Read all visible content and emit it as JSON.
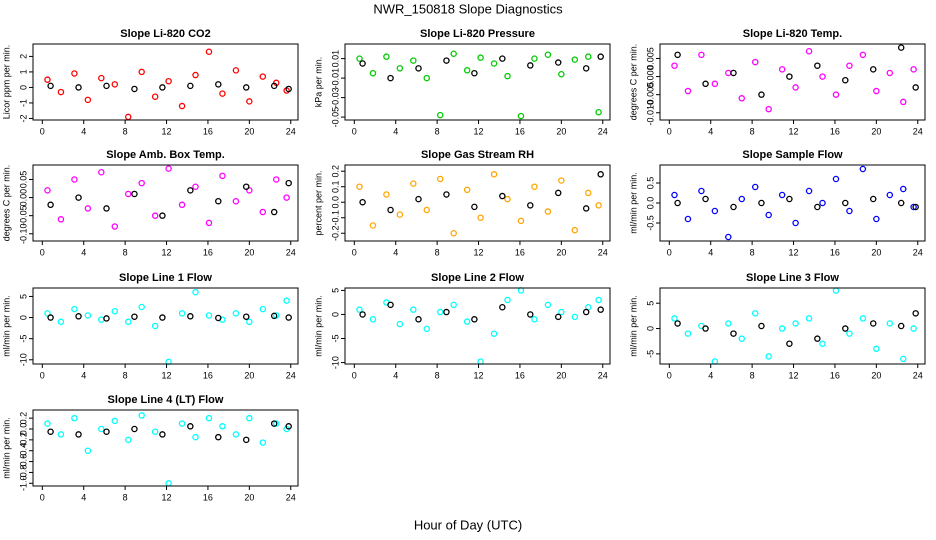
{
  "title": "NWR_150818  Slope Diagnostics",
  "x_label": "Hour of Day (UTC)",
  "chart_data": [
    {
      "type": "scatter",
      "title": "Slope Li-820 CO2",
      "y_label": "Licor ppm per min.",
      "xlim": [
        -0.9,
        24.7
      ],
      "xticks": [
        0,
        4,
        8,
        12,
        16,
        20,
        24
      ],
      "ylim": [
        -2.1,
        2.8
      ],
      "yticks": [
        -2,
        -1,
        0,
        1,
        2
      ],
      "series": [
        {
          "color": "#ff0000",
          "x": [
            0.5,
            1.8,
            3.1,
            4.4,
            5.7,
            7.0,
            8.3,
            9.6,
            10.9,
            12.2,
            13.5,
            14.8,
            16.1,
            17.4,
            18.7,
            20.0,
            21.3,
            22.6,
            23.6
          ],
          "values": [
            0.5,
            -0.3,
            0.9,
            -0.8,
            0.6,
            0.2,
            -1.9,
            1.0,
            -0.6,
            0.4,
            -1.2,
            0.8,
            2.3,
            -0.4,
            1.1,
            -0.9,
            0.7,
            0.3,
            -0.2
          ]
        },
        {
          "color": "#000000",
          "x": [
            0.8,
            3.5,
            6.2,
            8.9,
            11.6,
            14.3,
            17.0,
            19.7,
            22.4,
            23.8
          ],
          "values": [
            0.1,
            0.0,
            0.1,
            -0.1,
            0.0,
            0.1,
            0.2,
            0.0,
            0.1,
            -0.1
          ]
        }
      ]
    },
    {
      "type": "scatter",
      "title": "Slope Li-820 Pressure",
      "y_label": "kPa per min.",
      "xlim": [
        -0.9,
        24.7
      ],
      "xticks": [
        0,
        4,
        8,
        12,
        16,
        20,
        24
      ],
      "ylim": [
        -0.053,
        0.025
      ],
      "yticks": [
        -0.05,
        -0.03,
        -0.01,
        0.01
      ],
      "series": [
        {
          "color": "#00cc00",
          "x": [
            0.5,
            1.8,
            3.1,
            4.4,
            5.7,
            7.0,
            8.3,
            9.6,
            10.9,
            12.2,
            13.5,
            14.8,
            16.1,
            17.4,
            18.7,
            20.0,
            21.3,
            22.6,
            23.6
          ],
          "values": [
            0.01,
            -0.005,
            0.012,
            0.0,
            0.008,
            -0.01,
            -0.048,
            0.015,
            -0.002,
            0.011,
            0.005,
            -0.008,
            -0.049,
            0.01,
            0.014,
            -0.006,
            0.009,
            0.012,
            -0.045
          ]
        },
        {
          "color": "#000000",
          "x": [
            0.8,
            3.5,
            6.2,
            8.9,
            11.6,
            14.3,
            17.0,
            19.7,
            22.4,
            23.8
          ],
          "values": [
            0.005,
            -0.01,
            0.0,
            0.008,
            -0.005,
            0.01,
            0.003,
            0.006,
            0.0,
            0.012
          ]
        }
      ]
    },
    {
      "type": "scatter",
      "title": "Slope Li-820 Temp.",
      "y_label": "degrees C per min.",
      "xlim": [
        -0.9,
        24.7
      ],
      "xticks": [
        0,
        4,
        8,
        12,
        16,
        20,
        24
      ],
      "ylim": [
        -0.012,
        0.009
      ],
      "yticks": [
        {
          "value": -0.01,
          "label": "-0.010"
        },
        -0.005,
        {
          "value": 0,
          "label": "0.000"
        },
        0.005
      ],
      "series": [
        {
          "color": "#ff00ff",
          "x": [
            0.5,
            1.8,
            3.1,
            4.4,
            5.7,
            7.0,
            8.3,
            9.6,
            10.9,
            12.2,
            13.5,
            14.8,
            16.1,
            17.4,
            18.7,
            20.0,
            21.3,
            22.6,
            23.6
          ],
          "values": [
            0.003,
            -0.004,
            0.006,
            -0.002,
            0.001,
            -0.006,
            0.004,
            -0.009,
            0.002,
            -0.003,
            0.007,
            0.0,
            -0.005,
            0.003,
            0.006,
            -0.004,
            0.001,
            -0.007,
            0.002
          ]
        },
        {
          "color": "#000000",
          "x": [
            0.8,
            3.5,
            6.2,
            8.9,
            11.6,
            14.3,
            17.0,
            19.7,
            22.4,
            23.8
          ],
          "values": [
            0.006,
            -0.002,
            0.001,
            -0.005,
            0.0,
            0.003,
            -0.001,
            0.002,
            0.008,
            -0.003
          ]
        }
      ]
    },
    {
      "type": "scatter",
      "title": "Slope Amb. Box Temp.",
      "y_label": "degrees C per min.",
      "xlim": [
        -0.9,
        24.7
      ],
      "xticks": [
        0,
        4,
        8,
        12,
        16,
        20,
        24
      ],
      "ylim": [
        -0.12,
        0.09
      ],
      "yticks": [
        {
          "value": -0.1,
          "label": "-0.10"
        },
        -0.05,
        {
          "value": 0,
          "label": "0.00"
        },
        0.05
      ],
      "series": [
        {
          "color": "#ff00ff",
          "x": [
            0.5,
            1.8,
            3.1,
            4.4,
            5.7,
            7.0,
            8.3,
            9.6,
            10.9,
            12.2,
            13.5,
            14.8,
            16.1,
            17.4,
            18.7,
            20.0,
            21.3,
            22.6,
            23.6
          ],
          "values": [
            0.02,
            -0.06,
            0.05,
            -0.03,
            0.07,
            -0.08,
            0.01,
            0.04,
            -0.05,
            0.08,
            -0.02,
            0.03,
            -0.07,
            0.06,
            -0.01,
            0.02,
            -0.04,
            0.05,
            0.0
          ]
        },
        {
          "color": "#000000",
          "x": [
            0.8,
            3.5,
            6.2,
            8.9,
            11.6,
            14.3,
            17.0,
            19.7,
            22.4,
            23.8
          ],
          "values": [
            -0.02,
            0.0,
            -0.03,
            0.01,
            -0.05,
            0.02,
            -0.01,
            0.03,
            -0.04,
            0.04
          ]
        }
      ]
    },
    {
      "type": "scatter",
      "title": "Slope Gas Stream RH",
      "y_label": "percent per min.",
      "xlim": [
        -0.9,
        24.7
      ],
      "xticks": [
        0,
        4,
        8,
        12,
        16,
        20,
        24
      ],
      "ylim": [
        -0.25,
        0.24
      ],
      "yticks": [
        -0.2,
        -0.1,
        {
          "value": 0,
          "label": "0.0"
        },
        0.1,
        0.2
      ],
      "series": [
        {
          "color": "#ffa500",
          "x": [
            0.5,
            1.8,
            3.1,
            4.4,
            5.7,
            7.0,
            8.3,
            9.6,
            10.9,
            12.2,
            13.5,
            14.8,
            16.1,
            17.4,
            18.7,
            20.0,
            21.3,
            22.6,
            23.6
          ],
          "values": [
            0.1,
            -0.15,
            0.05,
            -0.08,
            0.12,
            -0.05,
            0.15,
            -0.2,
            0.08,
            -0.1,
            0.18,
            0.02,
            -0.12,
            0.1,
            -0.06,
            0.14,
            -0.18,
            0.06,
            -0.02
          ]
        },
        {
          "color": "#000000",
          "x": [
            0.8,
            3.5,
            6.2,
            8.9,
            11.6,
            14.3,
            17.0,
            19.7,
            22.4,
            23.8
          ],
          "values": [
            0.0,
            -0.05,
            0.02,
            0.05,
            -0.03,
            0.04,
            -0.02,
            0.06,
            -0.04,
            0.18
          ]
        }
      ]
    },
    {
      "type": "scatter",
      "title": "Slope Sample Flow",
      "y_label": "ml/min per min.",
      "xlim": [
        -0.9,
        24.7
      ],
      "xticks": [
        0,
        4,
        8,
        12,
        16,
        20,
        24
      ],
      "ylim": [
        -0.95,
        0.95
      ],
      "yticks": [
        -0.5,
        {
          "value": 0,
          "label": "0.0"
        },
        0.5
      ],
      "series": [
        {
          "color": "#0000ff",
          "x": [
            0.5,
            1.8,
            3.1,
            4.4,
            5.7,
            7.0,
            8.3,
            9.6,
            10.9,
            12.2,
            13.5,
            14.8,
            16.1,
            17.4,
            18.7,
            20.0,
            21.3,
            22.6,
            23.6
          ],
          "values": [
            0.2,
            -0.4,
            0.3,
            -0.2,
            -0.85,
            0.1,
            0.4,
            -0.3,
            0.2,
            -0.5,
            0.3,
            0.0,
            0.6,
            -0.2,
            0.85,
            -0.4,
            0.2,
            0.35,
            -0.1
          ]
        },
        {
          "color": "#000000",
          "x": [
            0.8,
            3.5,
            6.2,
            8.9,
            11.6,
            14.3,
            17.0,
            19.7,
            22.4,
            23.8
          ],
          "values": [
            0.0,
            0.1,
            -0.1,
            0.0,
            0.1,
            -0.1,
            0.0,
            0.1,
            0.0,
            -0.1
          ]
        }
      ]
    },
    {
      "type": "scatter",
      "title": "Slope Line 1 Flow",
      "y_label": "ml/min per min.",
      "xlim": [
        -0.9,
        24.7
      ],
      "xticks": [
        0,
        4,
        8,
        12,
        16,
        20,
        24
      ],
      "ylim": [
        -11,
        7
      ],
      "yticks": [
        -10,
        -5,
        0,
        5
      ],
      "series": [
        {
          "color": "#00ffff",
          "x": [
            0.5,
            1.8,
            3.1,
            4.4,
            5.7,
            7.0,
            8.3,
            9.6,
            10.9,
            12.2,
            13.5,
            14.8,
            16.1,
            17.4,
            18.7,
            20.0,
            21.3,
            22.6,
            23.6
          ],
          "values": [
            1,
            -1,
            2,
            0.5,
            -0.5,
            1.5,
            -1,
            2.5,
            -2,
            -10.5,
            1,
            6,
            0.5,
            -0.5,
            1,
            -1,
            2,
            0.5,
            4
          ]
        },
        {
          "color": "#000000",
          "x": [
            0.8,
            3.5,
            6.2,
            8.9,
            11.6,
            14.3,
            17.0,
            19.7,
            22.4,
            23.8
          ],
          "values": [
            0,
            0.3,
            -0.2,
            0.2,
            0,
            0.3,
            -0.1,
            0.2,
            0.4,
            0
          ]
        }
      ]
    },
    {
      "type": "scatter",
      "title": "Slope Line 2 Flow",
      "y_label": "ml/min per min.",
      "xlim": [
        -0.9,
        24.7
      ],
      "xticks": [
        0,
        4,
        8,
        12,
        16,
        20,
        24
      ],
      "ylim": [
        -10.3,
        5.5
      ],
      "yticks": [
        -10,
        -5,
        0,
        5
      ],
      "series": [
        {
          "color": "#00ffff",
          "x": [
            0.5,
            1.8,
            3.1,
            4.4,
            5.7,
            7.0,
            8.3,
            9.6,
            10.9,
            12.2,
            13.5,
            14.8,
            16.1,
            17.4,
            18.7,
            20.0,
            21.3,
            22.6,
            23.6
          ],
          "values": [
            1,
            -1,
            2.5,
            -2,
            1,
            -3,
            0.5,
            2,
            -1.5,
            -9.8,
            -4,
            3,
            5,
            -1,
            2,
            0.5,
            -0.5,
            1.5,
            3
          ]
        },
        {
          "color": "#000000",
          "x": [
            0.8,
            3.5,
            6.2,
            8.9,
            11.6,
            14.3,
            17.0,
            19.7,
            22.4,
            23.8
          ],
          "values": [
            0,
            2,
            -1,
            0.5,
            -1,
            1.5,
            0,
            -0.5,
            0.5,
            1
          ]
        }
      ]
    },
    {
      "type": "scatter",
      "title": "Slope Line 3 Flow",
      "y_label": "ml/min per min.",
      "xlim": [
        -0.9,
        24.7
      ],
      "xticks": [
        0,
        4,
        8,
        12,
        16,
        20,
        24
      ],
      "ylim": [
        -7,
        8
      ],
      "yticks": [
        -5,
        0,
        5
      ],
      "series": [
        {
          "color": "#00ffff",
          "x": [
            0.5,
            1.8,
            3.1,
            4.4,
            5.7,
            7.0,
            8.3,
            9.6,
            10.9,
            12.2,
            13.5,
            14.8,
            16.1,
            17.4,
            18.7,
            20.0,
            21.3,
            22.6,
            23.6
          ],
          "values": [
            2,
            -1,
            0.5,
            -6.5,
            1,
            -2,
            3,
            -5.5,
            0,
            1,
            2,
            -3,
            7.5,
            -1,
            2,
            -4,
            1,
            -6,
            0
          ]
        },
        {
          "color": "#000000",
          "x": [
            0.8,
            3.5,
            6.2,
            8.9,
            11.6,
            14.3,
            17.0,
            19.7,
            22.4,
            23.8
          ],
          "values": [
            1,
            0,
            -1,
            0.5,
            -3,
            -2,
            0,
            1,
            0.5,
            3
          ]
        }
      ]
    },
    {
      "type": "scatter",
      "title": "Slope Line 4 (LT) Flow",
      "y_label": "ml/min per min.",
      "xlim": [
        -0.9,
        24.7
      ],
      "xticks": [
        0,
        4,
        8,
        12,
        16,
        20,
        24
      ],
      "ylim": [
        -1.05,
        0.35
      ],
      "yticks": [
        {
          "value": -1,
          "label": "-1.0"
        },
        -0.8,
        -0.6,
        -0.4,
        -0.2,
        {
          "value": 0,
          "label": "0.0"
        },
        0.2
      ],
      "series": [
        {
          "color": "#00ffff",
          "x": [
            0.5,
            1.8,
            3.1,
            4.4,
            5.7,
            7.0,
            8.3,
            9.6,
            10.9,
            12.2,
            13.5,
            14.8,
            16.1,
            17.4,
            18.7,
            20.0,
            21.3,
            22.6,
            23.6
          ],
          "values": [
            0.1,
            -0.1,
            0.2,
            -0.4,
            0.0,
            0.15,
            -0.2,
            0.25,
            -0.05,
            -1.0,
            0.1,
            -0.15,
            0.2,
            0.05,
            -0.1,
            0.2,
            -0.25,
            0.1,
            0.0
          ]
        },
        {
          "color": "#000000",
          "x": [
            0.8,
            3.5,
            6.2,
            8.9,
            11.6,
            14.3,
            17.0,
            19.7,
            22.4,
            23.8
          ],
          "values": [
            -0.05,
            -0.1,
            -0.05,
            0.0,
            -0.1,
            0.05,
            -0.15,
            -0.2,
            0.1,
            0.05
          ]
        }
      ]
    }
  ]
}
